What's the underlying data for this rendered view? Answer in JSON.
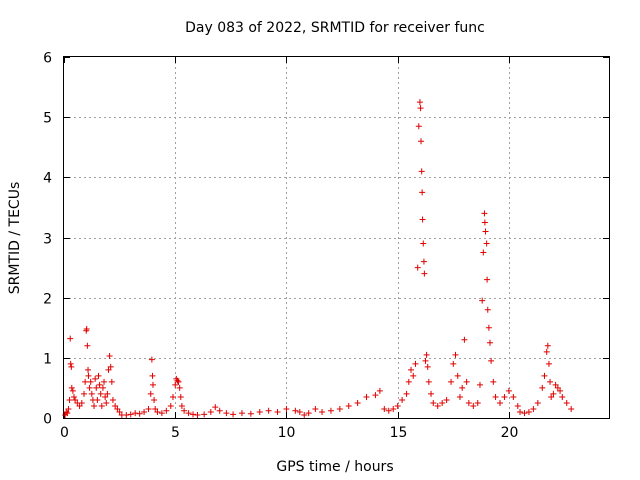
{
  "chart_data": {
    "type": "scatter",
    "title": "Day 083 of 2022, SRMTID for receiver func",
    "xlabel": "GPS time / hours",
    "ylabel": "SRMTID / TECUs",
    "xlim": [
      0,
      24.5
    ],
    "ylim": [
      0,
      6
    ],
    "xticks": [
      0,
      5,
      10,
      15,
      20
    ],
    "yticks": [
      0,
      1,
      2,
      3,
      4,
      5,
      6
    ],
    "grid": true,
    "marker": "+",
    "color": "#e00000",
    "series": [
      {
        "name": "SRMTID",
        "points": [
          [
            0.05,
            0.05
          ],
          [
            0.1,
            0.1
          ],
          [
            0.15,
            0.08
          ],
          [
            0.2,
            0.15
          ],
          [
            0.25,
            0.3
          ],
          [
            0.28,
            1.32
          ],
          [
            0.3,
            0.9
          ],
          [
            0.33,
            0.85
          ],
          [
            0.35,
            0.5
          ],
          [
            0.4,
            0.45
          ],
          [
            0.45,
            0.35
          ],
          [
            0.5,
            0.3
          ],
          [
            0.6,
            0.25
          ],
          [
            0.7,
            0.2
          ],
          [
            0.8,
            0.25
          ],
          [
            0.9,
            0.4
          ],
          [
            0.95,
            0.6
          ],
          [
            1.0,
            1.45
          ],
          [
            1.02,
            1.48
          ],
          [
            1.05,
            1.2
          ],
          [
            1.08,
            0.8
          ],
          [
            1.1,
            0.7
          ],
          [
            1.15,
            0.5
          ],
          [
            1.2,
            0.6
          ],
          [
            1.25,
            0.4
          ],
          [
            1.3,
            0.3
          ],
          [
            1.35,
            0.2
          ],
          [
            1.4,
            0.65
          ],
          [
            1.45,
            0.5
          ],
          [
            1.5,
            0.3
          ],
          [
            1.55,
            0.7
          ],
          [
            1.6,
            0.55
          ],
          [
            1.65,
            0.4
          ],
          [
            1.7,
            0.2
          ],
          [
            1.75,
            0.5
          ],
          [
            1.8,
            0.6
          ],
          [
            1.85,
            0.35
          ],
          [
            1.9,
            0.25
          ],
          [
            1.95,
            0.4
          ],
          [
            2.0,
            0.8
          ],
          [
            2.05,
            1.03
          ],
          [
            2.1,
            0.85
          ],
          [
            2.15,
            0.6
          ],
          [
            2.2,
            0.3
          ],
          [
            2.3,
            0.2
          ],
          [
            2.4,
            0.15
          ],
          [
            2.5,
            0.1
          ],
          [
            2.6,
            0.05
          ],
          [
            2.8,
            0.05
          ],
          [
            3.0,
            0.06
          ],
          [
            3.2,
            0.08
          ],
          [
            3.4,
            0.07
          ],
          [
            3.6,
            0.1
          ],
          [
            3.8,
            0.15
          ],
          [
            3.9,
            0.4
          ],
          [
            3.95,
            0.97
          ],
          [
            3.98,
            0.7
          ],
          [
            4.0,
            0.55
          ],
          [
            4.05,
            0.3
          ],
          [
            4.1,
            0.15
          ],
          [
            4.2,
            0.1
          ],
          [
            4.4,
            0.08
          ],
          [
            4.6,
            0.12
          ],
          [
            4.8,
            0.2
          ],
          [
            4.9,
            0.35
          ],
          [
            5.0,
            0.55
          ],
          [
            5.05,
            0.65
          ],
          [
            5.1,
            0.62
          ],
          [
            5.15,
            0.6
          ],
          [
            5.2,
            0.5
          ],
          [
            5.25,
            0.35
          ],
          [
            5.3,
            0.2
          ],
          [
            5.4,
            0.12
          ],
          [
            5.6,
            0.08
          ],
          [
            5.8,
            0.06
          ],
          [
            6.0,
            0.05
          ],
          [
            6.3,
            0.06
          ],
          [
            6.6,
            0.1
          ],
          [
            6.8,
            0.18
          ],
          [
            7.0,
            0.12
          ],
          [
            7.3,
            0.08
          ],
          [
            7.6,
            0.06
          ],
          [
            8.0,
            0.08
          ],
          [
            8.4,
            0.07
          ],
          [
            8.8,
            0.1
          ],
          [
            9.2,
            0.12
          ],
          [
            9.6,
            0.1
          ],
          [
            10.0,
            0.15
          ],
          [
            10.4,
            0.12
          ],
          [
            10.6,
            0.1
          ],
          [
            10.8,
            0.05
          ],
          [
            11.0,
            0.08
          ],
          [
            11.3,
            0.15
          ],
          [
            11.6,
            0.1
          ],
          [
            12.0,
            0.12
          ],
          [
            12.4,
            0.15
          ],
          [
            12.8,
            0.2
          ],
          [
            13.2,
            0.25
          ],
          [
            13.6,
            0.35
          ],
          [
            14.0,
            0.38
          ],
          [
            14.2,
            0.45
          ],
          [
            14.4,
            0.15
          ],
          [
            14.6,
            0.12
          ],
          [
            14.8,
            0.15
          ],
          [
            15.0,
            0.2
          ],
          [
            15.2,
            0.3
          ],
          [
            15.4,
            0.4
          ],
          [
            15.5,
            0.6
          ],
          [
            15.6,
            0.8
          ],
          [
            15.7,
            0.7
          ],
          [
            15.8,
            0.9
          ],
          [
            15.9,
            2.5
          ],
          [
            15.95,
            4.85
          ],
          [
            16.0,
            5.25
          ],
          [
            16.03,
            5.15
          ],
          [
            16.05,
            4.6
          ],
          [
            16.08,
            4.1
          ],
          [
            16.1,
            3.75
          ],
          [
            16.12,
            3.3
          ],
          [
            16.15,
            2.9
          ],
          [
            16.18,
            2.6
          ],
          [
            16.2,
            2.4
          ],
          [
            16.25,
            0.95
          ],
          [
            16.3,
            1.05
          ],
          [
            16.35,
            0.85
          ],
          [
            16.4,
            0.6
          ],
          [
            16.5,
            0.4
          ],
          [
            16.6,
            0.25
          ],
          [
            16.8,
            0.2
          ],
          [
            17.0,
            0.25
          ],
          [
            17.2,
            0.3
          ],
          [
            17.4,
            0.6
          ],
          [
            17.5,
            0.9
          ],
          [
            17.6,
            1.05
          ],
          [
            17.7,
            0.7
          ],
          [
            17.8,
            0.35
          ],
          [
            17.9,
            0.5
          ],
          [
            18.0,
            1.3
          ],
          [
            18.1,
            0.6
          ],
          [
            18.2,
            0.25
          ],
          [
            18.4,
            0.2
          ],
          [
            18.6,
            0.25
          ],
          [
            18.7,
            0.55
          ],
          [
            18.8,
            1.95
          ],
          [
            18.85,
            2.75
          ],
          [
            18.9,
            3.4
          ],
          [
            18.92,
            3.25
          ],
          [
            18.95,
            3.1
          ],
          [
            19.0,
            2.9
          ],
          [
            19.02,
            2.3
          ],
          [
            19.05,
            1.8
          ],
          [
            19.1,
            1.5
          ],
          [
            19.15,
            1.25
          ],
          [
            19.2,
            0.95
          ],
          [
            19.3,
            0.6
          ],
          [
            19.4,
            0.35
          ],
          [
            19.6,
            0.25
          ],
          [
            19.8,
            0.35
          ],
          [
            20.0,
            0.45
          ],
          [
            20.2,
            0.35
          ],
          [
            20.4,
            0.2
          ],
          [
            20.5,
            0.1
          ],
          [
            20.7,
            0.08
          ],
          [
            20.9,
            0.1
          ],
          [
            21.1,
            0.15
          ],
          [
            21.3,
            0.25
          ],
          [
            21.5,
            0.5
          ],
          [
            21.6,
            0.7
          ],
          [
            21.7,
            1.1
          ],
          [
            21.75,
            1.2
          ],
          [
            21.8,
            0.9
          ],
          [
            21.85,
            0.6
          ],
          [
            21.9,
            0.35
          ],
          [
            22.0,
            0.4
          ],
          [
            22.1,
            0.55
          ],
          [
            22.2,
            0.5
          ],
          [
            22.3,
            0.45
          ],
          [
            22.4,
            0.35
          ],
          [
            22.6,
            0.25
          ],
          [
            22.8,
            0.15
          ]
        ]
      }
    ]
  }
}
